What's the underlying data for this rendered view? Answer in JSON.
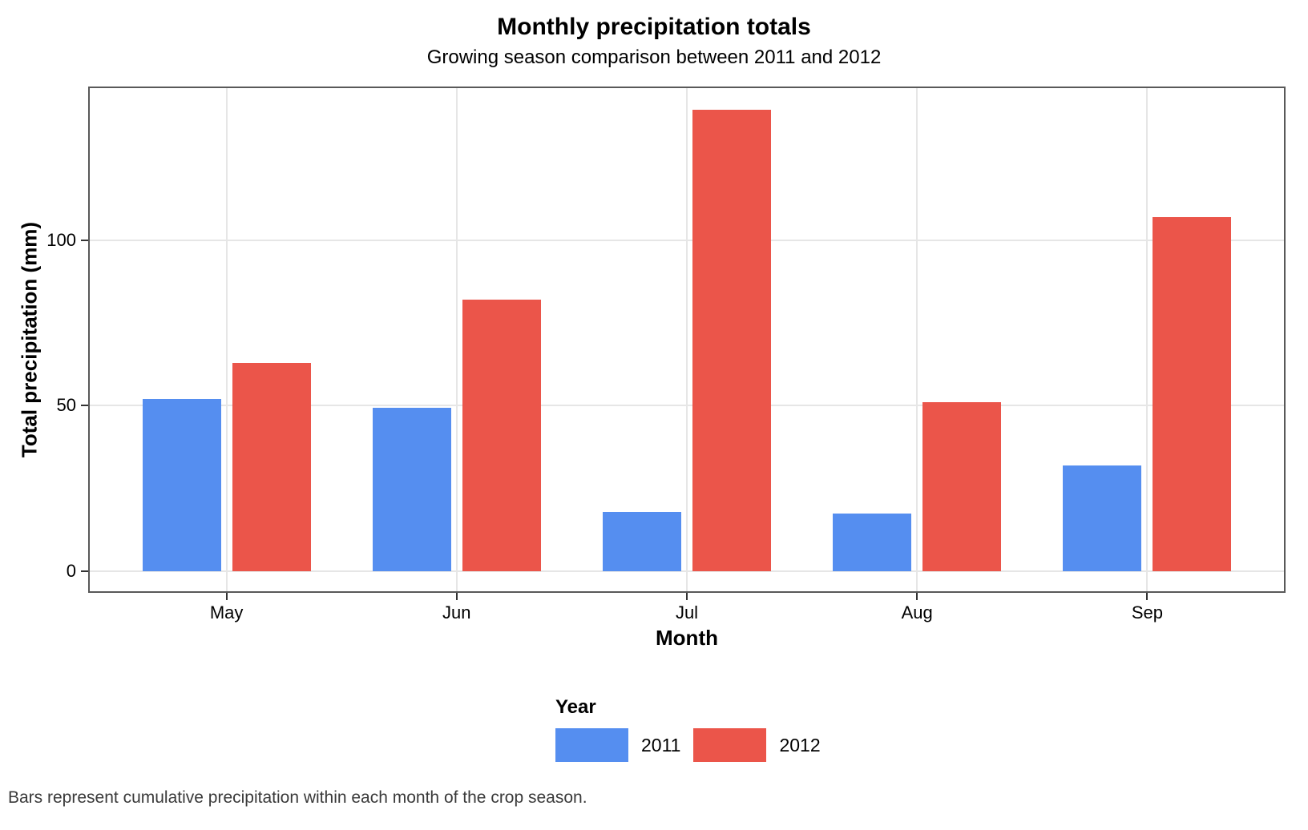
{
  "title": "Monthly precipitation totals",
  "subtitle": "Growing season comparison between 2011 and 2012",
  "caption": "Bars represent cumulative precipitation within each month of the crop season.",
  "legend": {
    "title": "Year",
    "entries": [
      {
        "label": "2011",
        "color": "#558EF0"
      },
      {
        "label": "2012",
        "color": "#EB554A"
      }
    ]
  },
  "chart_data": {
    "type": "bar",
    "categories": [
      "May",
      "Jun",
      "Jul",
      "Aug",
      "Sep"
    ],
    "series": [
      {
        "name": "2011",
        "color": "#558EF0",
        "values": [
          52,
          49.5,
          18,
          17.5,
          32
        ]
      },
      {
        "name": "2012",
        "color": "#EB554A",
        "values": [
          63,
          82,
          139.5,
          51,
          107
        ]
      }
    ],
    "title": "Monthly precipitation totals",
    "subtitle": "Growing season comparison between 2011 and 2012",
    "xlabel": "Month",
    "ylabel": "Total precipitation (mm)",
    "yticks": [
      0,
      50,
      100
    ],
    "ylim": [
      0,
      146
    ],
    "grid": true,
    "legend_position": "bottom"
  },
  "colors": {
    "grid": "#e6e6e6",
    "panel_border": "#595959",
    "tick": "#333333",
    "caption_text": "#3a3a3a"
  }
}
